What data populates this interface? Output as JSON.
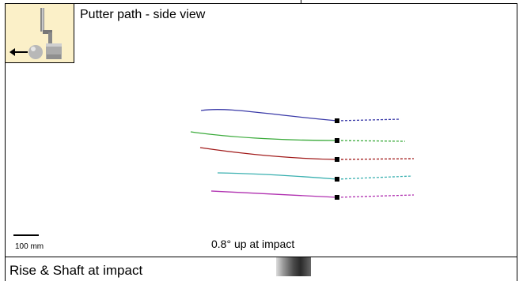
{
  "panel": {
    "title": "Putter path - side view",
    "caption": "0.8° up at impact",
    "scale_label": "100 mm",
    "icon_name": "putter-side-view-icon"
  },
  "paths": [
    {
      "name": "blue",
      "color": "#3a3aa8"
    },
    {
      "name": "green",
      "color": "#3aaa3a"
    },
    {
      "name": "red",
      "color": "#a01818"
    },
    {
      "name": "cyan",
      "color": "#3ab0b0"
    },
    {
      "name": "magenta",
      "color": "#b030b0"
    }
  ],
  "next_panel": {
    "title": "Rise & Shaft at impact"
  }
}
